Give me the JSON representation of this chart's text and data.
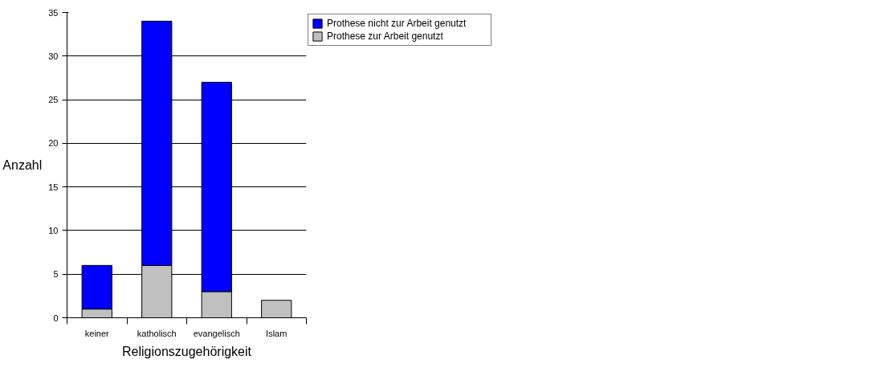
{
  "chart_data": {
    "type": "bar",
    "stacked": true,
    "xlabel": "Religionszugehörigkeit",
    "ylabel": "Anzahl",
    "categories": [
      "keiner",
      "katholisch",
      "evangelisch",
      "Islam"
    ],
    "series": [
      {
        "name": "Prothese zur Arbeit genutzt",
        "color": "#c0c0c0",
        "values": [
          1,
          6,
          3,
          2
        ]
      },
      {
        "name": "Prothese nicht zur Arbeit genutzt",
        "color": "#0000ff",
        "values": [
          5,
          28,
          24,
          null
        ]
      }
    ],
    "ylim": [
      0,
      35
    ],
    "yticks": [
      0,
      5,
      10,
      15,
      20,
      25,
      30,
      35
    ],
    "grid": "y",
    "legend": "right"
  }
}
